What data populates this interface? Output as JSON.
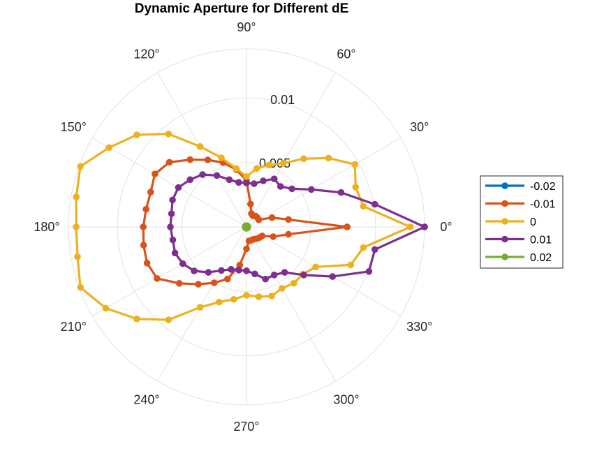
{
  "chart_data": {
    "type": "polar-line",
    "title": "Dynamic Aperture for Different dE",
    "theta_unit": "deg",
    "theta_ticks": [
      0,
      30,
      60,
      90,
      120,
      150,
      180,
      210,
      240,
      270,
      300,
      330
    ],
    "theta_tick_labels": [
      "0°",
      "30°",
      "60°",
      "90°",
      "120°",
      "150°",
      "180°",
      "210°",
      "240°",
      "270°",
      "300°",
      "330°"
    ],
    "r_ticks": [
      0.005,
      0.01
    ],
    "r_tick_labels": [
      "0.005",
      "0.01"
    ],
    "rlim": [
      0,
      0.0138
    ],
    "grid": true,
    "legend_position": "right",
    "theta": [
      0,
      10,
      20,
      30,
      40,
      50,
      60,
      70,
      80,
      90,
      100,
      110,
      120,
      130,
      140,
      150,
      160,
      170,
      180,
      190,
      200,
      210,
      220,
      230,
      240,
      250,
      260,
      270,
      280,
      290,
      300,
      310,
      320,
      330,
      340,
      350,
      360
    ],
    "series": [
      {
        "name": "-0.02",
        "color": "#0072BD",
        "values": [
          2e-05,
          2e-05,
          2e-05,
          2e-05,
          2e-05,
          2e-05,
          2e-05,
          2e-05,
          2e-05,
          2e-05,
          2e-05,
          2e-05,
          2e-05,
          2e-05,
          2e-05,
          2e-05,
          2e-05,
          2e-05,
          2e-05,
          2e-05,
          2e-05,
          2e-05,
          2e-05,
          2e-05,
          2e-05,
          2e-05,
          2e-05,
          2e-05,
          2e-05,
          2e-05,
          2e-05,
          2e-05,
          2e-05,
          2e-05,
          2e-05,
          2e-05,
          2e-05
        ]
      },
      {
        "name": "-0.01",
        "color": "#D95319",
        "values": [
          0.0078,
          0.0033,
          0.0021,
          0.0011,
          0.0011,
          0.0011,
          0.001,
          0.0011,
          0.0018,
          0.0036,
          0.0045,
          0.0053,
          0.006,
          0.0068,
          0.0078,
          0.0082,
          0.0079,
          0.0079,
          0.008,
          0.0081,
          0.0082,
          0.008,
          0.0068,
          0.0058,
          0.005,
          0.0043,
          0.003,
          0.0017,
          0.0011,
          0.0011,
          0.0011,
          0.0012,
          0.0013,
          0.0014,
          0.0022,
          0.0033,
          0.0078
        ]
      },
      {
        "name": "0",
        "color": "#EDB120",
        "values": [
          0.0127,
          0.0092,
          0.009,
          0.0097,
          0.0083,
          0.0069,
          0.0057,
          0.0051,
          0.0046,
          0.0039,
          0.0046,
          0.0057,
          0.0072,
          0.0094,
          0.0111,
          0.0123,
          0.0137,
          0.0134,
          0.0132,
          0.0133,
          0.0137,
          0.0126,
          0.0111,
          0.0094,
          0.0072,
          0.0062,
          0.0057,
          0.0053,
          0.0055,
          0.0057,
          0.0055,
          0.0057,
          0.0057,
          0.0062,
          0.0086,
          0.0092,
          0.0127
        ]
      },
      {
        "name": "0.01",
        "color": "#7E2F8E",
        "values": [
          0.0138,
          0.0101,
          0.0078,
          0.0058,
          0.0046,
          0.0041,
          0.0043,
          0.0038,
          0.0034,
          0.0034,
          0.0035,
          0.0039,
          0.0046,
          0.0053,
          0.0057,
          0.0061,
          0.0061,
          0.0059,
          0.0059,
          0.0058,
          0.0059,
          0.0057,
          0.0053,
          0.0046,
          0.0039,
          0.0035,
          0.0034,
          0.0034,
          0.0037,
          0.0043,
          0.0043,
          0.0046,
          0.0058,
          0.0077,
          0.0101,
          0.0101,
          0.0138
        ]
      },
      {
        "name": "0.02",
        "color": "#77AC30",
        "values": [
          0.0001,
          0.0001,
          0.0001,
          0.0001,
          0.0001,
          0.0001,
          0.0001,
          0.0001,
          0.0001,
          0.0001,
          0.0001,
          0.0001,
          0.0001,
          0.0001,
          0.0001,
          0.0001,
          0.0001,
          0.0001,
          0.0001,
          0.0001,
          0.0001,
          0.0001,
          0.0001,
          0.0001,
          0.0001,
          0.0001,
          0.0001,
          0.0001,
          0.0001,
          0.0001,
          0.0001,
          0.0001,
          0.0001,
          0.0001,
          0.0001,
          0.0001,
          0.0001
        ]
      }
    ]
  }
}
